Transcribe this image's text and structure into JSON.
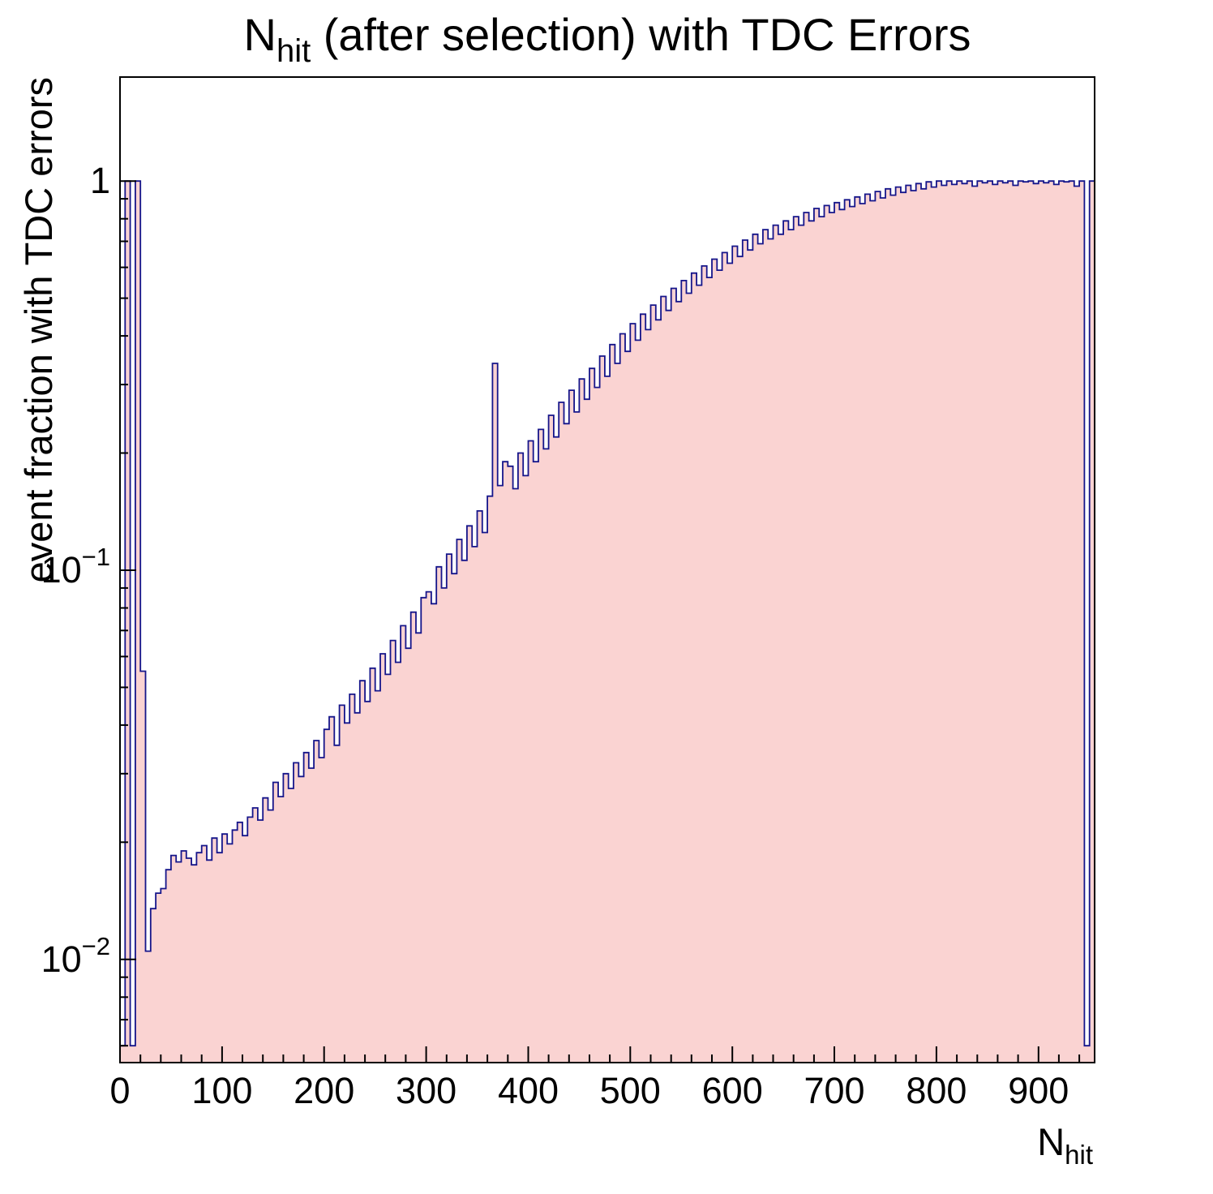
{
  "chart_data": {
    "type": "bar",
    "title": "N_hit (after selection) with TDC Errors",
    "title_parts": [
      {
        "text": "N",
        "sub": false
      },
      {
        "text": "hit",
        "sub": true
      },
      {
        "text": " (after selection) with TDC Errors",
        "sub": false
      }
    ],
    "xlabel": "N_hit",
    "xlabel_parts": [
      {
        "text": "N",
        "sub": false
      },
      {
        "text": "hit",
        "sub": true
      }
    ],
    "ylabel": "event fraction with TDC errors",
    "x_axis": {
      "min": 0,
      "max": 955,
      "major_ticks": [
        0,
        100,
        200,
        300,
        400,
        500,
        600,
        700,
        800,
        900
      ],
      "minor_step": 20
    },
    "y_axis": {
      "scale": "log",
      "min": 0.00543,
      "max": 1.85,
      "major_ticks": [
        {
          "value": 1,
          "mantissa": "1",
          "exponent": ""
        },
        {
          "value": 0.1,
          "mantissa": "10",
          "exponent": "−1"
        },
        {
          "value": 0.01,
          "mantissa": "10",
          "exponent": "−2"
        }
      ]
    },
    "grid": false,
    "legend": false,
    "bin_width": 5,
    "x_start": 0,
    "values": [
      0.006,
      1.0,
      0.006,
      1.0,
      0.055,
      0.0105,
      0.0135,
      0.0148,
      0.0152,
      0.017,
      0.0185,
      0.0178,
      0.019,
      0.0182,
      0.0175,
      0.0188,
      0.0196,
      0.018,
      0.0205,
      0.0188,
      0.021,
      0.0198,
      0.0215,
      0.0225,
      0.0208,
      0.0232,
      0.0245,
      0.0228,
      0.026,
      0.0242,
      0.0285,
      0.0262,
      0.03,
      0.0275,
      0.032,
      0.0295,
      0.034,
      0.031,
      0.0365,
      0.033,
      0.039,
      0.042,
      0.0355,
      0.045,
      0.0405,
      0.048,
      0.043,
      0.052,
      0.046,
      0.056,
      0.049,
      0.061,
      0.054,
      0.066,
      0.058,
      0.072,
      0.063,
      0.078,
      0.069,
      0.085,
      0.088,
      0.082,
      0.102,
      0.09,
      0.11,
      0.098,
      0.12,
      0.106,
      0.13,
      0.115,
      0.142,
      0.125,
      0.155,
      0.34,
      0.165,
      0.19,
      0.185,
      0.162,
      0.2,
      0.175,
      0.215,
      0.19,
      0.23,
      0.205,
      0.25,
      0.22,
      0.27,
      0.238,
      0.29,
      0.255,
      0.31,
      0.275,
      0.33,
      0.295,
      0.355,
      0.315,
      0.38,
      0.34,
      0.405,
      0.365,
      0.43,
      0.39,
      0.455,
      0.415,
      0.48,
      0.44,
      0.505,
      0.465,
      0.53,
      0.49,
      0.555,
      0.515,
      0.58,
      0.54,
      0.605,
      0.565,
      0.63,
      0.59,
      0.655,
      0.615,
      0.68,
      0.64,
      0.705,
      0.665,
      0.73,
      0.69,
      0.75,
      0.71,
      0.77,
      0.73,
      0.79,
      0.75,
      0.81,
      0.77,
      0.83,
      0.79,
      0.85,
      0.81,
      0.865,
      0.83,
      0.88,
      0.845,
      0.895,
      0.86,
      0.91,
      0.875,
      0.925,
      0.89,
      0.94,
      0.905,
      0.955,
      0.92,
      0.965,
      0.935,
      0.975,
      0.945,
      0.985,
      0.955,
      0.995,
      0.965,
      1.0,
      0.975,
      1.0,
      0.98,
      1.0,
      0.985,
      1.0,
      0.97,
      1.0,
      0.99,
      1.0,
      0.98,
      1.0,
      0.99,
      1.0,
      0.975,
      1.0,
      0.995,
      1.0,
      0.985,
      1.0,
      0.99,
      1.0,
      0.98,
      1.0,
      0.995,
      1.0,
      0.97,
      1.0,
      0.006,
      1.0
    ],
    "colors": {
      "fill": "#fad3d2",
      "line": "#15158a",
      "axis": "#000000",
      "background": "#ffffff"
    }
  }
}
